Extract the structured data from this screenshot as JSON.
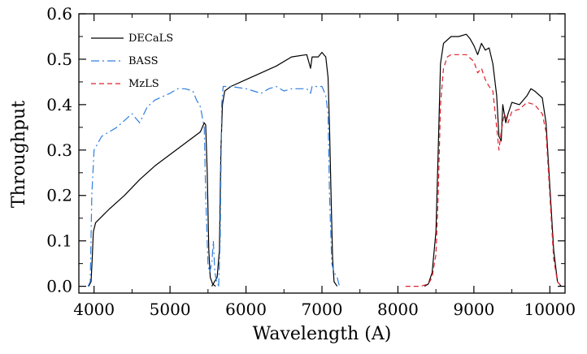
{
  "chart_data": {
    "type": "line",
    "title": "",
    "xlabel": "Wavelength (A)",
    "ylabel": "Throughput",
    "xlim": [
      3800,
      10200
    ],
    "ylim": [
      -0.015,
      0.6
    ],
    "xticks": [
      4000,
      5000,
      6000,
      7000,
      8000,
      9000,
      10000
    ],
    "yticks": [
      0.0,
      0.1,
      0.2,
      0.3,
      0.4,
      0.5,
      0.6
    ],
    "ytick_labels": [
      "0.0",
      "0.1",
      "0.2",
      "0.3",
      "0.4",
      "0.5",
      "0.6"
    ],
    "legend_position": "top-left",
    "series": [
      {
        "name": "DECaLS",
        "color": "#000000",
        "dash": "solid",
        "segments": [
          [
            [
              3930,
              0
            ],
            [
              3960,
              0.01
            ],
            [
              3975,
              0.06
            ],
            [
              3990,
              0.12
            ],
            [
              4020,
              0.14
            ],
            [
              4200,
              0.17
            ],
            [
              4400,
              0.2
            ],
            [
              4600,
              0.235
            ],
            [
              4800,
              0.265
            ],
            [
              5000,
              0.29
            ],
            [
              5200,
              0.315
            ],
            [
              5400,
              0.34
            ],
            [
              5450,
              0.36
            ],
            [
              5470,
              0.355
            ],
            [
              5490,
              0.25
            ],
            [
              5510,
              0.08
            ],
            [
              5530,
              0.02
            ],
            [
              5560,
              0.005
            ],
            [
              5600,
              0
            ]
          ],
          [
            [
              5550,
              0
            ],
            [
              5620,
              0.02
            ],
            [
              5650,
              0.08
            ],
            [
              5670,
              0.3
            ],
            [
              5690,
              0.4
            ],
            [
              5720,
              0.43
            ],
            [
              5800,
              0.44
            ],
            [
              6000,
              0.455
            ],
            [
              6200,
              0.47
            ],
            [
              6400,
              0.485
            ],
            [
              6600,
              0.505
            ],
            [
              6800,
              0.51
            ],
            [
              6850,
              0.48
            ],
            [
              6870,
              0.505
            ],
            [
              6950,
              0.505
            ],
            [
              7000,
              0.515
            ],
            [
              7050,
              0.505
            ],
            [
              7080,
              0.46
            ],
            [
              7100,
              0.35
            ],
            [
              7120,
              0.2
            ],
            [
              7140,
              0.06
            ],
            [
              7160,
              0.01
            ],
            [
              7200,
              0
            ]
          ],
          [
            [
              8350,
              0
            ],
            [
              8400,
              0.005
            ],
            [
              8450,
              0.03
            ],
            [
              8500,
              0.12
            ],
            [
              8530,
              0.3
            ],
            [
              8560,
              0.49
            ],
            [
              8600,
              0.535
            ],
            [
              8700,
              0.55
            ],
            [
              8800,
              0.55
            ],
            [
              8900,
              0.555
            ],
            [
              8950,
              0.545
            ],
            [
              9000,
              0.53
            ],
            [
              9050,
              0.51
            ],
            [
              9100,
              0.535
            ],
            [
              9150,
              0.52
            ],
            [
              9200,
              0.525
            ],
            [
              9250,
              0.49
            ],
            [
              9300,
              0.42
            ],
            [
              9330,
              0.33
            ],
            [
              9360,
              0.32
            ],
            [
              9380,
              0.4
            ],
            [
              9420,
              0.36
            ],
            [
              9450,
              0.38
            ],
            [
              9500,
              0.405
            ],
            [
              9600,
              0.4
            ],
            [
              9700,
              0.42
            ],
            [
              9750,
              0.435
            ],
            [
              9800,
              0.43
            ],
            [
              9900,
              0.415
            ],
            [
              9950,
              0.36
            ],
            [
              10000,
              0.22
            ],
            [
              10050,
              0.08
            ],
            [
              10100,
              0.01
            ],
            [
              10150,
              0
            ]
          ]
        ]
      },
      {
        "name": "BASS",
        "color": "#2f7fe0",
        "dash": "10,4,2,4",
        "segments": [
          [
            [
              3920,
              0
            ],
            [
              3950,
              0.01
            ],
            [
              3970,
              0.2
            ],
            [
              4000,
              0.3
            ],
            [
              4100,
              0.33
            ],
            [
              4300,
              0.35
            ],
            [
              4500,
              0.38
            ],
            [
              4550,
              0.37
            ],
            [
              4600,
              0.36
            ],
            [
              4700,
              0.395
            ],
            [
              4800,
              0.41
            ],
            [
              5000,
              0.425
            ],
            [
              5100,
              0.435
            ],
            [
              5200,
              0.435
            ],
            [
              5300,
              0.43
            ],
            [
              5350,
              0.41
            ],
            [
              5400,
              0.395
            ],
            [
              5450,
              0.35
            ],
            [
              5470,
              0.2
            ],
            [
              5500,
              0.05
            ],
            [
              5520,
              0.03
            ],
            [
              5550,
              0.05
            ],
            [
              5570,
              0.1
            ],
            [
              5590,
              0.03
            ],
            [
              5620,
              0.005
            ],
            [
              5660,
              0
            ]
          ],
          [
            [
              5640,
              0
            ],
            [
              5660,
              0.1
            ],
            [
              5680,
              0.4
            ],
            [
              5700,
              0.44
            ],
            [
              5800,
              0.44
            ],
            [
              6000,
              0.435
            ],
            [
              6200,
              0.425
            ],
            [
              6300,
              0.435
            ],
            [
              6400,
              0.44
            ],
            [
              6500,
              0.43
            ],
            [
              6600,
              0.435
            ],
            [
              6700,
              0.435
            ],
            [
              6800,
              0.435
            ],
            [
              6850,
              0.425
            ],
            [
              6870,
              0.44
            ],
            [
              7000,
              0.44
            ],
            [
              7050,
              0.42
            ],
            [
              7080,
              0.38
            ],
            [
              7100,
              0.2
            ],
            [
              7130,
              0.05
            ],
            [
              7160,
              0.03
            ],
            [
              7200,
              0.02
            ],
            [
              7230,
              0
            ]
          ]
        ]
      },
      {
        "name": "MzLS",
        "color": "#e0202a",
        "dash": "6,4",
        "segments": [
          [
            [
              8100,
              0
            ],
            [
              8300,
              0
            ],
            [
              8400,
              0.005
            ],
            [
              8450,
              0.02
            ],
            [
              8500,
              0.07
            ],
            [
              8530,
              0.2
            ],
            [
              8560,
              0.4
            ],
            [
              8600,
              0.48
            ],
            [
              8650,
              0.505
            ],
            [
              8700,
              0.51
            ],
            [
              8800,
              0.51
            ],
            [
              8900,
              0.51
            ],
            [
              9000,
              0.495
            ],
            [
              9050,
              0.47
            ],
            [
              9100,
              0.48
            ],
            [
              9150,
              0.455
            ],
            [
              9200,
              0.44
            ],
            [
              9250,
              0.43
            ],
            [
              9300,
              0.35
            ],
            [
              9330,
              0.3
            ],
            [
              9360,
              0.34
            ],
            [
              9400,
              0.38
            ],
            [
              9450,
              0.36
            ],
            [
              9500,
              0.385
            ],
            [
              9600,
              0.39
            ],
            [
              9700,
              0.405
            ],
            [
              9800,
              0.4
            ],
            [
              9900,
              0.38
            ],
            [
              9950,
              0.34
            ],
            [
              10000,
              0.2
            ],
            [
              10050,
              0.06
            ],
            [
              10100,
              0.01
            ],
            [
              10150,
              0
            ]
          ]
        ]
      }
    ]
  }
}
